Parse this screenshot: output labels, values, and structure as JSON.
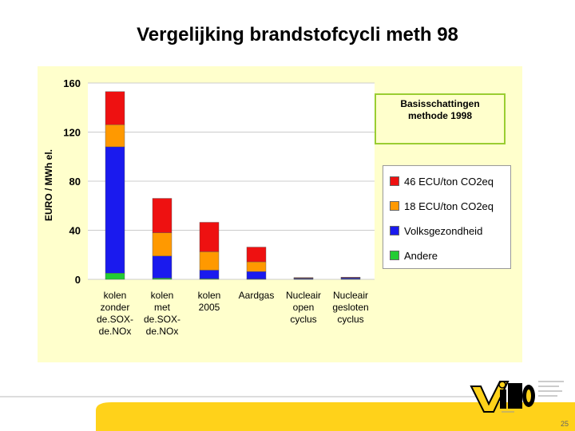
{
  "slide": {
    "title": "Vergelijking brandstofcycli meth 98",
    "page_number": "25",
    "logo_text": "VITO"
  },
  "annotation": {
    "line1": "Basisschattingen",
    "line2": "methode 1998"
  },
  "colors": {
    "andere": "#22cc33",
    "volksgezondheid": "#1a1aee",
    "ecu18": "#ff9900",
    "ecu46": "#ee1111",
    "panel": "#ffffcc",
    "footer_yellow": "#ffd21a"
  },
  "chart_data": {
    "type": "bar",
    "stacked": true,
    "title": "Vergelijking brandstofcycli meth 98",
    "ylabel": "EURO  / MWh el.",
    "xlabel": "",
    "ylim": [
      0,
      160
    ],
    "yticks": [
      0,
      40,
      80,
      120,
      160
    ],
    "grid": true,
    "legend_position": "right",
    "categories": [
      "kolen\nzonder\nde.SOX-\nde.NOx",
      "kolen\nmet\nde.SOX-\nde.NOx",
      "kolen\n2005",
      "Aardgas",
      "Nucleair\nopen\ncyclus",
      "Nucleair\ngesloten\ncyclus"
    ],
    "series": [
      {
        "name": "Andere",
        "color": "#22cc33",
        "values": [
          5,
          1,
          0.5,
          0.3,
          0.3,
          0.3
        ]
      },
      {
        "name": "Volksgezondheid",
        "color": "#1a1aee",
        "values": [
          103,
          18,
          7,
          6,
          0.5,
          0.8
        ]
      },
      {
        "name": "18 ECU/ton CO2eq",
        "color": "#ff9900",
        "values": [
          18,
          19,
          15,
          8,
          0.3,
          0.3
        ]
      },
      {
        "name": "46 ECU/ton CO2eq",
        "color": "#ee1111",
        "values": [
          27,
          28,
          24,
          12,
          0.4,
          0.4
        ]
      }
    ],
    "legend_order": [
      "46 ECU/ton CO2eq",
      "18 ECU/ton CO2eq",
      "Volksgezondheid",
      "Andere"
    ]
  }
}
